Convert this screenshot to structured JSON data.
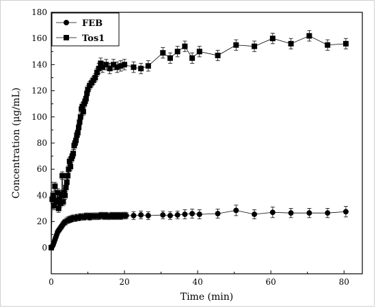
{
  "chart_data": {
    "type": "scatter",
    "xlabel": "Time (min)",
    "ylabel": "Concentration (μg/mL)",
    "xlim": [
      0,
      85
    ],
    "ylim": [
      -20,
      180
    ],
    "xticks": [
      0,
      20,
      40,
      60,
      80
    ],
    "yticks": [
      0,
      20,
      40,
      60,
      80,
      100,
      120,
      140,
      160,
      180
    ],
    "grid": false,
    "legend_position": "top-left",
    "series": [
      {
        "name": "FEB",
        "marker": "circle",
        "line": true,
        "color": "#000000",
        "x": [
          0,
          0.25,
          0.5,
          0.75,
          1,
          1.25,
          1.5,
          1.75,
          2,
          2.25,
          2.5,
          2.75,
          3,
          3.25,
          3.5,
          3.75,
          4,
          4.5,
          5,
          5.5,
          6,
          6.5,
          7,
          7.5,
          8,
          8.5,
          9,
          9.5,
          10,
          10.5,
          11,
          11.5,
          12,
          12.5,
          13,
          13.5,
          14,
          14.5,
          15,
          15.5,
          16,
          16.5,
          17,
          17.5,
          18,
          18.5,
          19,
          19.5,
          20,
          20.5,
          22.5,
          24.5,
          26.5,
          30.5,
          32.5,
          34.5,
          36.5,
          38.5,
          40.5,
          45.5,
          50.5,
          55.5,
          60.5,
          65.5,
          70.5,
          75.5,
          80.5
        ],
        "y": [
          0,
          1,
          2,
          4,
          6,
          8,
          10,
          12,
          13,
          14,
          15,
          16,
          17,
          18,
          19,
          19.5,
          20,
          21,
          21.5,
          22,
          22.5,
          22.5,
          23,
          23,
          23.5,
          23.5,
          23.5,
          24,
          24,
          23.5,
          24,
          24,
          24,
          24,
          24,
          24.5,
          24.5,
          24,
          24.5,
          24,
          24,
          24.5,
          24,
          24.5,
          24,
          24.5,
          24,
          24.5,
          24.5,
          24.5,
          24.5,
          25,
          24.5,
          25,
          24.5,
          25,
          25.5,
          26,
          25.5,
          26,
          28.5,
          25.5,
          27,
          26.5,
          26.5,
          26.5,
          27.5
        ],
        "error": [
          0.5,
          1,
          1,
          1.5,
          2,
          2,
          2,
          2,
          2,
          2,
          2,
          2,
          2,
          2,
          2,
          2,
          2.5,
          2.5,
          2.5,
          2.5,
          2.5,
          2.5,
          2.5,
          2.5,
          2.5,
          2.5,
          2.5,
          2.5,
          2.5,
          2.5,
          2.5,
          2.5,
          2.5,
          2.5,
          2.5,
          2.5,
          2.5,
          2.5,
          2.5,
          2.5,
          2.5,
          2.5,
          2.5,
          2.5,
          2.5,
          2.5,
          2.5,
          2.5,
          2.5,
          2.5,
          3,
          3,
          3,
          3,
          3,
          3,
          3.5,
          3.5,
          3.5,
          3.5,
          4,
          3.5,
          4,
          3.5,
          3.5,
          3.5,
          4
        ]
      },
      {
        "name": "Tos1",
        "marker": "square",
        "line": true,
        "color": "#000000",
        "x": [
          0,
          0.25,
          0.5,
          0.75,
          1,
          1.25,
          1.5,
          1.75,
          2,
          2.25,
          2.5,
          2.75,
          3,
          3.25,
          3.5,
          3.75,
          4,
          4.25,
          4.5,
          4.75,
          5,
          5.25,
          5.5,
          5.75,
          6,
          6.25,
          6.5,
          6.75,
          7,
          7.25,
          7.5,
          7.75,
          8,
          8.25,
          8.5,
          8.75,
          9,
          9.25,
          9.5,
          9.75,
          10,
          10.5,
          11,
          11.5,
          12,
          12.5,
          13,
          13.5,
          14,
          15,
          16,
          17,
          18,
          19,
          20,
          22.5,
          24.5,
          26.5,
          30.5,
          32.5,
          34.5,
          36.5,
          38.5,
          40.5,
          45.5,
          50.5,
          55.5,
          60.5,
          65.5,
          70.5,
          75.5,
          80.5
        ],
        "y": [
          0,
          37,
          40,
          32,
          47,
          36,
          35,
          42,
          30,
          37,
          34,
          41,
          55,
          35,
          42,
          40,
          46,
          50,
          55,
          60,
          66,
          62,
          68,
          70,
          72,
          78,
          80,
          82,
          86,
          88,
          92,
          96,
          100,
          106,
          108,
          104,
          110,
          112,
          114,
          118,
          121,
          124,
          126,
          128,
          130,
          134,
          137,
          141,
          138,
          140,
          137,
          140,
          138,
          139,
          140,
          138,
          137,
          139,
          149,
          145,
          150,
          154,
          145,
          150,
          147,
          155,
          154,
          160,
          156,
          162,
          155,
          156
        ],
        "error": [
          1,
          3,
          3,
          3,
          3,
          3,
          3,
          3,
          3,
          3,
          3,
          3,
          3,
          3,
          3,
          3,
          3,
          3,
          3,
          3,
          3,
          3,
          3,
          3,
          3,
          3,
          3,
          3,
          3,
          3,
          3,
          3,
          3,
          3,
          3,
          3,
          3,
          3,
          3,
          3,
          3,
          3,
          3,
          3,
          3,
          3,
          4,
          4,
          4,
          4,
          4,
          4,
          4,
          4,
          4,
          4,
          4,
          4,
          4,
          4,
          4,
          4,
          4,
          4,
          4,
          4,
          4,
          4,
          4,
          4,
          4,
          4
        ]
      }
    ]
  }
}
